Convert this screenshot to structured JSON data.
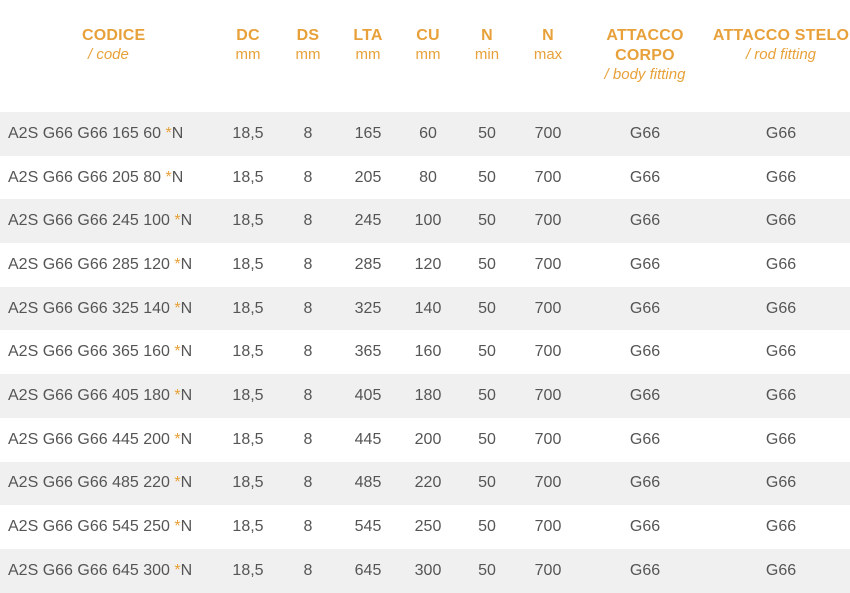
{
  "header": {
    "code": {
      "main": "CODICE",
      "sub": "/ code"
    },
    "dc": {
      "main": "DC",
      "sub": "mm"
    },
    "ds": {
      "main": "DS",
      "sub": "mm"
    },
    "lta": {
      "main": "LTA",
      "sub": "mm"
    },
    "cu": {
      "main": "CU",
      "sub": "mm"
    },
    "nmin": {
      "main": "N",
      "sub": "min"
    },
    "nmax": {
      "main": "N",
      "sub": "max"
    },
    "body": {
      "main": "ATTACCO CORPO",
      "sub": "/ body fitting"
    },
    "rod": {
      "main": "ATTACCO STELO",
      "sub": "/ rod fitting"
    }
  },
  "rows": [
    {
      "code": "A2S G66 G66 165 60 ",
      "suffix_star": "*",
      "suffix": "N",
      "dc": "18,5",
      "ds": "8",
      "lta": "165",
      "cu": "60",
      "nmin": "50",
      "nmax": "700",
      "body": "G66",
      "rod": "G66"
    },
    {
      "code": "A2S G66 G66 205 80 ",
      "suffix_star": "*",
      "suffix": "N",
      "dc": "18,5",
      "ds": "8",
      "lta": "205",
      "cu": "80",
      "nmin": "50",
      "nmax": "700",
      "body": "G66",
      "rod": "G66"
    },
    {
      "code": "A2S G66 G66 245 100 ",
      "suffix_star": "*",
      "suffix": "N",
      "dc": "18,5",
      "ds": "8",
      "lta": "245",
      "cu": "100",
      "nmin": "50",
      "nmax": "700",
      "body": "G66",
      "rod": "G66"
    },
    {
      "code": "A2S G66 G66 285 120 ",
      "suffix_star": "*",
      "suffix": "N",
      "dc": "18,5",
      "ds": "8",
      "lta": "285",
      "cu": "120",
      "nmin": "50",
      "nmax": "700",
      "body": "G66",
      "rod": "G66"
    },
    {
      "code": "A2S G66 G66 325 140 ",
      "suffix_star": "*",
      "suffix": "N",
      "dc": "18,5",
      "ds": "8",
      "lta": "325",
      "cu": "140",
      "nmin": "50",
      "nmax": "700",
      "body": "G66",
      "rod": "G66"
    },
    {
      "code": "A2S G66 G66 365 160 ",
      "suffix_star": "*",
      "suffix": "N",
      "dc": "18,5",
      "ds": "8",
      "lta": "365",
      "cu": "160",
      "nmin": "50",
      "nmax": "700",
      "body": "G66",
      "rod": "G66"
    },
    {
      "code": "A2S G66 G66 405 180 ",
      "suffix_star": "*",
      "suffix": "N",
      "dc": "18,5",
      "ds": "8",
      "lta": "405",
      "cu": "180",
      "nmin": "50",
      "nmax": "700",
      "body": "G66",
      "rod": "G66"
    },
    {
      "code": "A2S G66 G66 445 200 ",
      "suffix_star": "*",
      "suffix": "N",
      "dc": "18,5",
      "ds": "8",
      "lta": "445",
      "cu": "200",
      "nmin": "50",
      "nmax": "700",
      "body": "G66",
      "rod": "G66"
    },
    {
      "code": "A2S G66 G66 485 220 ",
      "suffix_star": "*",
      "suffix": "N",
      "dc": "18,5",
      "ds": "8",
      "lta": "485",
      "cu": "220",
      "nmin": "50",
      "nmax": "700",
      "body": "G66",
      "rod": "G66"
    },
    {
      "code": "A2S G66 G66 545 250 ",
      "suffix_star": "*",
      "suffix": "N",
      "dc": "18,5",
      "ds": "8",
      "lta": "545",
      "cu": "250",
      "nmin": "50",
      "nmax": "700",
      "body": "G66",
      "rod": "G66"
    },
    {
      "code": "A2S G66 G66 645 300 ",
      "suffix_star": "*",
      "suffix": "N",
      "dc": "18,5",
      "ds": "8",
      "lta": "645",
      "cu": "300",
      "nmin": "50",
      "nmax": "700",
      "body": "G66",
      "rod": "G66"
    }
  ]
}
